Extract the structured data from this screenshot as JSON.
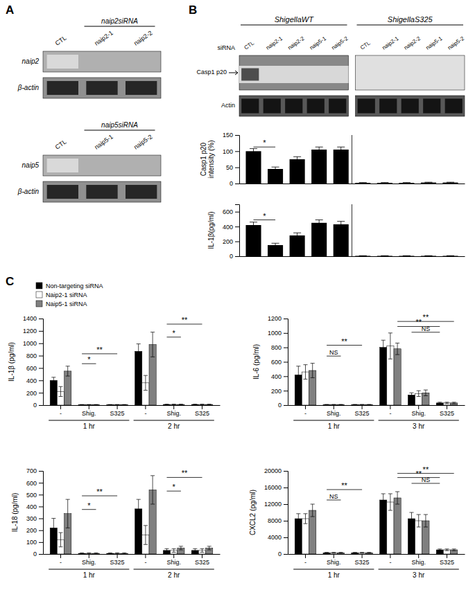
{
  "chart_data": [
    {
      "type": "blot",
      "title": "A",
      "groups": [
        {
          "label": "naip2siRNA",
          "lanes": [
            "CTL",
            "naip2-1",
            "naip2-2"
          ],
          "rows": [
            "naip2",
            "β-actin"
          ]
        },
        {
          "label": "naip5siRNA",
          "lanes": [
            "CTL",
            "naip5-1",
            "naip5-2"
          ],
          "rows": [
            "naip5",
            "β-actin"
          ]
        }
      ]
    },
    {
      "type": "blot",
      "title": "B",
      "lane_title": "siRNA",
      "rows": [
        "Casp1 p20",
        "Actin"
      ],
      "groups": [
        {
          "label": "ShigellaWT",
          "lanes": [
            "CTL",
            "naip2-1",
            "naip2-2",
            "naip5-1",
            "naip5-2"
          ]
        },
        {
          "label": "ShigellaS325",
          "lanes": [
            "CTL",
            "naip2-1",
            "naip2-2",
            "naip5-1",
            "naip5-2"
          ]
        }
      ]
    },
    {
      "type": "bar",
      "ylabel": "Casp1 p20\nintensity (%)",
      "categories": [
        null,
        null,
        null,
        null,
        null,
        null,
        null,
        null,
        null,
        null
      ],
      "values": [
        100,
        45,
        75,
        105,
        105,
        2,
        2,
        2,
        3,
        3
      ],
      "errors": [
        8,
        6,
        8,
        8,
        8,
        1,
        1,
        1,
        1,
        1
      ],
      "color": "#000000",
      "ylim": [
        0,
        150
      ],
      "yticks": [
        0,
        50,
        100,
        150
      ],
      "tick_labels": "y",
      "annotations": [
        {
          "text": "*",
          "from": 0,
          "to": 1,
          "y": 113
        }
      ]
    },
    {
      "type": "bar",
      "ylabel": "IL-1β(pg/ml)",
      "categories": [
        null,
        null,
        null,
        null,
        null,
        null,
        null,
        null,
        null,
        null
      ],
      "values": [
        420,
        150,
        280,
        450,
        430,
        5,
        5,
        5,
        5,
        5
      ],
      "errors": [
        40,
        25,
        35,
        40,
        40,
        2,
        2,
        2,
        2,
        2
      ],
      "color": "#000000",
      "ylim": [
        0,
        700
      ],
      "yticks": [
        0,
        200,
        400,
        600
      ],
      "tick_labels": "y",
      "annotations": [
        {
          "text": "*",
          "from": 0,
          "to": 1,
          "y": 490
        }
      ]
    },
    {
      "type": "bar",
      "title": "C",
      "ylabel": "IL-1β (pg/ml)",
      "categories": [
        "-",
        "Shig.",
        "S325",
        "-",
        "Shig.",
        "S325"
      ],
      "group_labels": [
        "1 hr",
        "2 hr"
      ],
      "series": [
        {
          "name": "Non-targeting siRNA",
          "color": "#000000",
          "values": [
            400,
            5,
            5,
            870,
            10,
            10
          ],
          "errors": [
            50,
            5,
            5,
            120,
            5,
            5
          ]
        },
        {
          "name": "Naip2-1 siRNA",
          "color": "#ffffff",
          "values": [
            220,
            5,
            5,
            360,
            10,
            10
          ],
          "errors": [
            80,
            5,
            5,
            120,
            5,
            5
          ]
        },
        {
          "name": "Naip5-1 siRNA",
          "color": "#808080",
          "values": [
            550,
            5,
            5,
            980,
            10,
            10
          ],
          "errors": [
            80,
            5,
            5,
            200,
            5,
            5
          ]
        }
      ],
      "ylim": [
        0,
        1400
      ],
      "yticks": [
        0,
        200,
        400,
        600,
        800,
        1000,
        1200,
        1400
      ],
      "legend": "upper left",
      "annotations": [
        {
          "text": "*",
          "from": [
            1,
            0
          ],
          "to": [
            1,
            2
          ],
          "y": 670
        },
        {
          "text": "**",
          "from": [
            1,
            0
          ],
          "to": [
            2,
            1
          ],
          "y": 830
        },
        {
          "text": "*",
          "from": [
            4,
            0
          ],
          "to": [
            4,
            2
          ],
          "y": 1100
        },
        {
          "text": "**",
          "from": [
            4,
            0
          ],
          "to": [
            5,
            1
          ],
          "y": 1310
        }
      ]
    },
    {
      "type": "bar",
      "ylabel": "IL-6 (pg/ml)",
      "categories": [
        "-",
        "Shig.",
        "S325",
        "-",
        "Shig.",
        "S325"
      ],
      "group_labels": [
        "1 hr",
        "3 hr"
      ],
      "series": [
        {
          "color": "#000000",
          "values": [
            420,
            5,
            5,
            800,
            140,
            30
          ],
          "errors": [
            120,
            5,
            5,
            100,
            30,
            10
          ]
        },
        {
          "color": "#ffffff",
          "values": [
            460,
            5,
            5,
            820,
            160,
            30
          ],
          "errors": [
            100,
            5,
            5,
            180,
            40,
            10
          ]
        },
        {
          "color": "#808080",
          "values": [
            480,
            5,
            5,
            780,
            170,
            30
          ],
          "errors": [
            100,
            5,
            5,
            80,
            40,
            10
          ]
        }
      ],
      "ylim": [
        0,
        1200
      ],
      "yticks": [
        0,
        200,
        400,
        600,
        800,
        1000,
        1200
      ],
      "annotations": [
        {
          "text": "NS",
          "from": [
            1,
            0
          ],
          "to": [
            1,
            2
          ],
          "y": 680
        },
        {
          "text": "**",
          "from": [
            1,
            0
          ],
          "to": [
            2,
            1
          ],
          "y": 830
        },
        {
          "text": "NS",
          "from": [
            4,
            0
          ],
          "to": [
            5,
            0
          ],
          "y": 1010
        },
        {
          "text": "**",
          "from": [
            3,
            2
          ],
          "to": [
            5,
            0
          ],
          "y": 1090
        },
        {
          "text": "**",
          "from": [
            3,
            2
          ],
          "to": [
            5,
            2
          ],
          "y": 1160
        }
      ]
    },
    {
      "type": "bar",
      "ylabel": "IL-18 (pg/ml)",
      "categories": [
        "-",
        "Shig.",
        "S325",
        "-",
        "Shig.",
        "S325"
      ],
      "group_labels": [
        "1 hr",
        "2 hr"
      ],
      "series": [
        {
          "color": "#000000",
          "values": [
            220,
            5,
            5,
            380,
            30,
            30
          ],
          "errors": [
            80,
            5,
            5,
            80,
            15,
            15
          ]
        },
        {
          "color": "#ffffff",
          "values": [
            120,
            5,
            5,
            160,
            30,
            30
          ],
          "errors": [
            60,
            5,
            5,
            80,
            15,
            15
          ]
        },
        {
          "color": "#808080",
          "values": [
            340,
            5,
            5,
            540,
            50,
            50
          ],
          "errors": [
            120,
            5,
            5,
            120,
            15,
            15
          ]
        }
      ],
      "ylim": [
        0,
        700
      ],
      "yticks": [
        0,
        100,
        200,
        300,
        400,
        500,
        600,
        700
      ],
      "annotations": [
        {
          "text": "*",
          "from": [
            1,
            0
          ],
          "to": [
            1,
            2
          ],
          "y": 375
        },
        {
          "text": "**",
          "from": [
            1,
            0
          ],
          "to": [
            2,
            1
          ],
          "y": 490
        },
        {
          "text": "*",
          "from": [
            4,
            0
          ],
          "to": [
            4,
            2
          ],
          "y": 530
        },
        {
          "text": "**",
          "from": [
            4,
            0
          ],
          "to": [
            5,
            1
          ],
          "y": 645
        }
      ]
    },
    {
      "type": "bar",
      "ylabel": "CXCL2 (pg/ml)",
      "categories": [
        "-",
        "Shig.",
        "S325",
        "-",
        "Shig.",
        "S325"
      ],
      "group_labels": [
        "1 hr",
        "3 hr"
      ],
      "series": [
        {
          "color": "#000000",
          "values": [
            8500,
            300,
            300,
            13000,
            8500,
            1000
          ],
          "errors": [
            1200,
            100,
            100,
            1500,
            1500,
            200
          ]
        },
        {
          "color": "#ffffff",
          "values": [
            8500,
            300,
            300,
            12500,
            8000,
            1000
          ],
          "errors": [
            1200,
            100,
            100,
            2000,
            1500,
            200
          ]
        },
        {
          "color": "#808080",
          "values": [
            10500,
            300,
            300,
            13500,
            8000,
            1000
          ],
          "errors": [
            1500,
            100,
            100,
            1500,
            1500,
            200
          ]
        }
      ],
      "ylim": [
        0,
        20000
      ],
      "yticks": [
        0,
        4000,
        8000,
        12000,
        16000,
        20000
      ],
      "annotations": [
        {
          "text": "NS",
          "from": [
            1,
            0
          ],
          "to": [
            1,
            2
          ],
          "y": 13000
        },
        {
          "text": "**",
          "from": [
            1,
            0
          ],
          "to": [
            2,
            1
          ],
          "y": 15500
        },
        {
          "text": "NS",
          "from": [
            4,
            0
          ],
          "to": [
            5,
            0
          ],
          "y": 17000
        },
        {
          "text": "**",
          "from": [
            3,
            2
          ],
          "to": [
            5,
            0
          ],
          "y": 18400
        },
        {
          "text": "**",
          "from": [
            3,
            2
          ],
          "to": [
            5,
            2
          ],
          "y": 19400
        }
      ]
    }
  ]
}
